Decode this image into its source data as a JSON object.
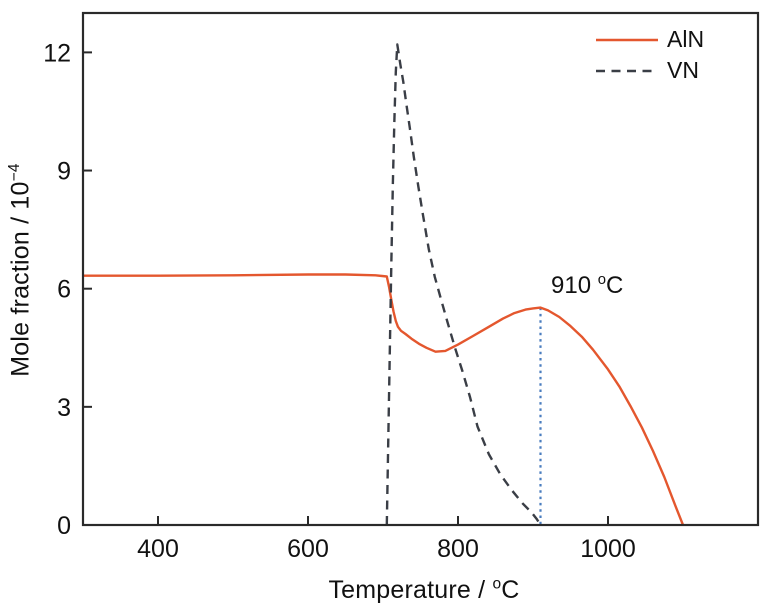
{
  "chart_data": {
    "type": "line",
    "title": "",
    "xlabel": "Temperature / °C",
    "ylabel": "Mole fraction / 10⁻⁴",
    "xlim": [
      300,
      1200
    ],
    "ylim": [
      0,
      13
    ],
    "xticks": [
      400,
      600,
      800,
      1000
    ],
    "yticks": [
      0,
      3,
      6,
      9,
      12
    ],
    "grid": false,
    "legend_position": "top-right-inside",
    "series": [
      {
        "name": "AlN",
        "style": "solid",
        "color": "#e4572e",
        "x": [
          300,
          400,
          500,
          600,
          650,
          690,
          705,
          708,
          711,
          714,
          717,
          720,
          724,
          730,
          738,
          748,
          758,
          770,
          783,
          800,
          820,
          840,
          860,
          875,
          890,
          900,
          910,
          920,
          935,
          950,
          965,
          980,
          1000,
          1015,
          1030,
          1045,
          1060,
          1075,
          1090,
          1100
        ],
        "y": [
          6.33,
          6.33,
          6.34,
          6.36,
          6.36,
          6.34,
          6.31,
          6.05,
          5.72,
          5.42,
          5.18,
          5.03,
          4.93,
          4.85,
          4.73,
          4.6,
          4.5,
          4.4,
          4.42,
          4.58,
          4.8,
          5.02,
          5.24,
          5.38,
          5.47,
          5.5,
          5.52,
          5.45,
          5.28,
          5.05,
          4.78,
          4.45,
          3.95,
          3.52,
          3.02,
          2.48,
          1.88,
          1.22,
          0.48,
          0.0
        ]
      },
      {
        "name": "VN",
        "style": "dashed",
        "color": "#3a3e46",
        "x": [
          705,
          707,
          709,
          711,
          713,
          715,
          717,
          719,
          723,
          727,
          731,
          736,
          741,
          747,
          753,
          761,
          769,
          777,
          786,
          796,
          806,
          816,
          826,
          841,
          856,
          871,
          886,
          898,
          905,
          910
        ],
        "y": [
          0.0,
          2.2,
          4.4,
          6.6,
          8.6,
          10.2,
          11.5,
          12.2,
          11.7,
          11.25,
          10.7,
          10.05,
          9.35,
          8.6,
          7.9,
          7.0,
          6.3,
          5.75,
          5.15,
          4.5,
          3.9,
          3.25,
          2.5,
          1.8,
          1.3,
          0.9,
          0.55,
          0.32,
          0.15,
          0.0
        ]
      }
    ],
    "annotation": {
      "label": "910 °C",
      "x": 910,
      "y_top": 5.52,
      "y_bottom": 0,
      "line_color": "#4a7dbf",
      "line_style": "dotted"
    },
    "axis_color": "#2a2a2a",
    "text_color": "#111111"
  },
  "labels": {
    "xlabel_prefix": "Temperature / ",
    "xlabel_sup": "o",
    "xlabel_suffix": "C",
    "ylabel_prefix": "Mole fraction / 10",
    "ylabel_sup": "−4",
    "annotation_value": "910 ",
    "annotation_sup": "o",
    "annotation_suffix": "C"
  }
}
